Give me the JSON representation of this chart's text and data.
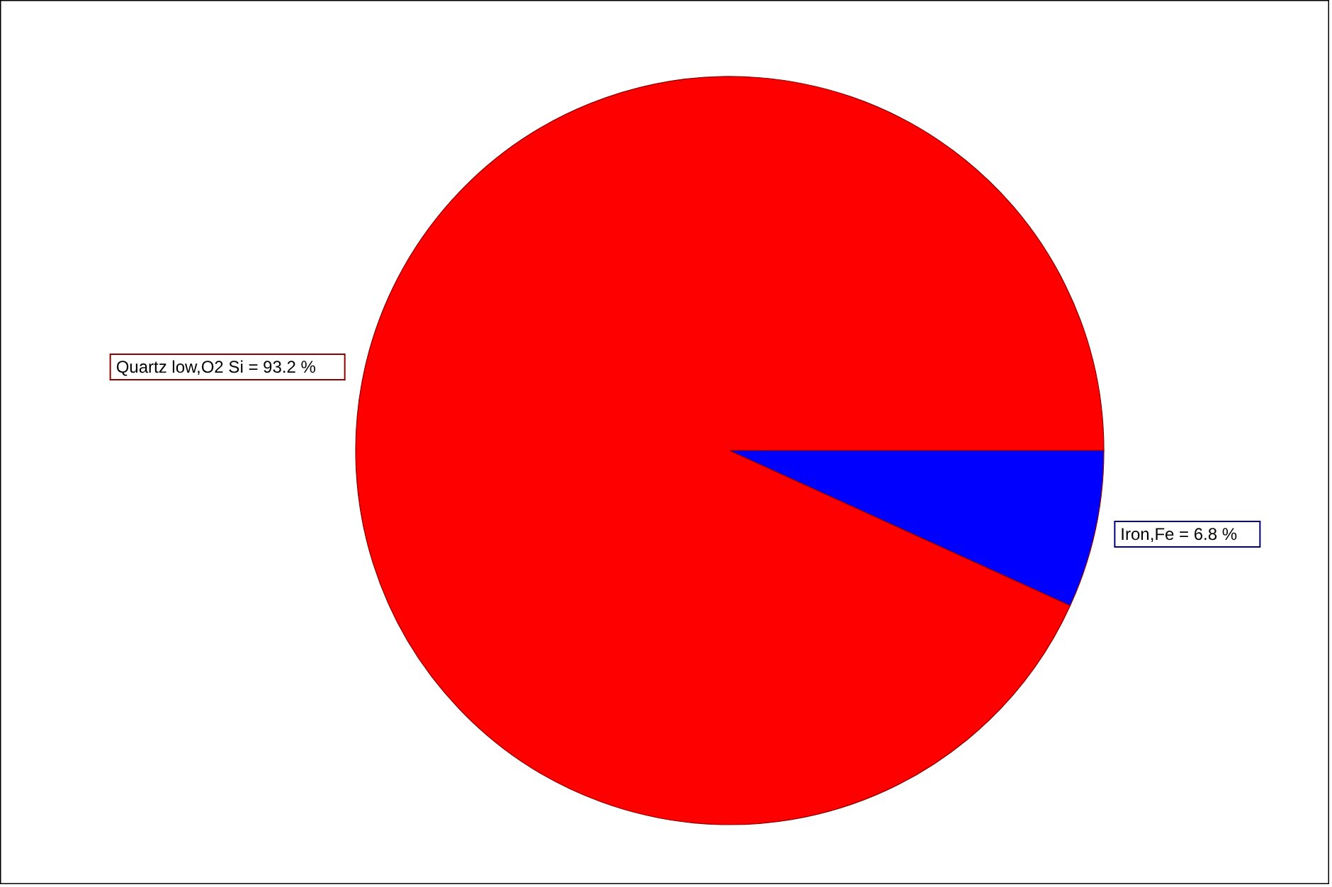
{
  "chart_data": {
    "type": "pie",
    "categories": [
      "Quartz low,O2 Si = 93.2 %",
      "Iron,Fe = 6.8 %"
    ],
    "values": [
      93.2,
      6.8
    ],
    "colors": [
      "#ff0000",
      "#0000ff"
    ]
  }
}
